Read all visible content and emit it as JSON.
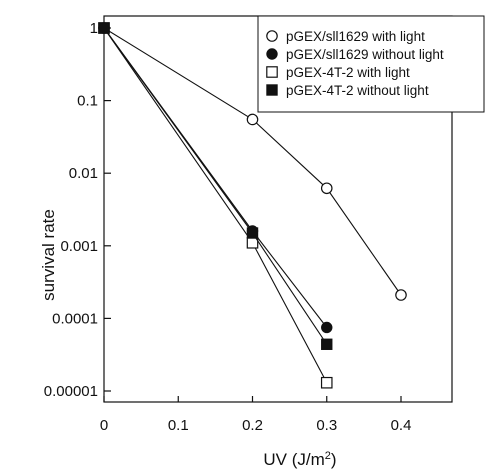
{
  "chart_data": {
    "type": "line",
    "xlabel": "UV (J/m",
    "xlabel_sup": "2",
    "xlabel_close": ")",
    "ylabel": "survival rate",
    "xlim": [
      0,
      0.45
    ],
    "ylim": [
      5e-06,
      1.5
    ],
    "y_scale": "log",
    "x_ticks": [
      0,
      0.1,
      0.2,
      0.3,
      0.4
    ],
    "x_tick_labels": [
      "0",
      "0.1",
      "0.2",
      "0.3",
      "0.4"
    ],
    "y_ticks": [
      1,
      0.1,
      0.01,
      0.001,
      0.0001,
      1e-05
    ],
    "y_tick_labels": [
      "1",
      "0.1",
      "0.01",
      "0.001",
      "0.0001",
      "0.00001"
    ],
    "grid": false,
    "legend_position": "top-right",
    "series": [
      {
        "name": "pGEX/sll1629 with light",
        "marker": "open-circle",
        "x": [
          0,
          0.2,
          0.3,
          0.4
        ],
        "y": [
          1,
          0.055,
          0.0062,
          0.00021
        ]
      },
      {
        "name": "pGEX/sll1629 without light",
        "marker": "filled-circle",
        "x": [
          0,
          0.2,
          0.3
        ],
        "y": [
          1,
          0.0016,
          7.5e-05
        ]
      },
      {
        "name": "pGEX-4T-2 with light",
        "marker": "open-square",
        "x": [
          0,
          0.2,
          0.3
        ],
        "y": [
          1,
          0.0011,
          1.3e-05
        ]
      },
      {
        "name": "pGEX-4T-2 without light",
        "marker": "filled-square",
        "x": [
          0,
          0.2,
          0.3
        ],
        "y": [
          1,
          0.0015,
          4.4e-05
        ]
      }
    ]
  }
}
